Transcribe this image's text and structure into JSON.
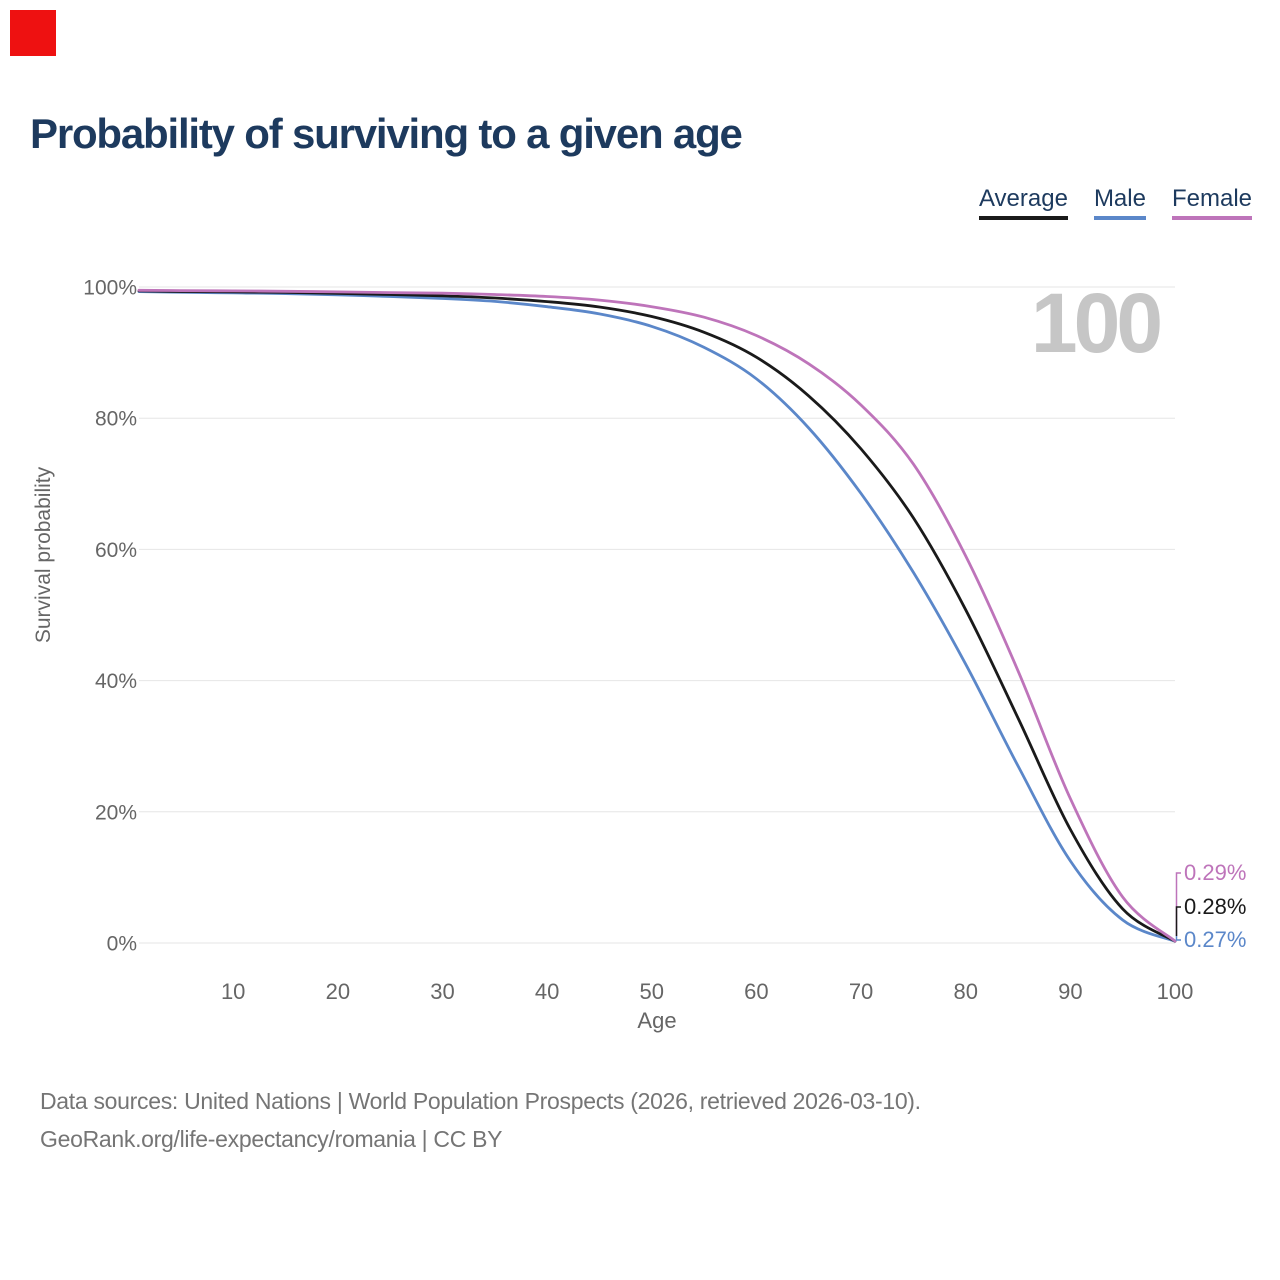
{
  "red_square": {
    "color": "#ee1111"
  },
  "title": "Probability of surviving to a given age",
  "legend": {
    "items": [
      {
        "label": "Average",
        "color": "#1a1a1a"
      },
      {
        "label": "Male",
        "color": "#5b87c9"
      },
      {
        "label": "Female",
        "color": "#be74ba"
      }
    ]
  },
  "chart_data": {
    "type": "line",
    "title": "Probability of surviving to a given age",
    "xlabel": "Age",
    "ylabel": "Survival probability",
    "watermark": "100",
    "x_ticks": [
      10,
      20,
      30,
      40,
      50,
      60,
      70,
      80,
      90,
      100
    ],
    "y_tick_labels": [
      "0%",
      "20%",
      "40%",
      "60%",
      "80%",
      "100%"
    ],
    "y_tick_values": [
      0,
      20,
      40,
      60,
      80,
      100
    ],
    "xlim": [
      1,
      100
    ],
    "ylim": [
      0,
      100
    ],
    "grid": "horizontal",
    "legend_position": "top-right",
    "ages": [
      1,
      5,
      10,
      15,
      20,
      25,
      30,
      35,
      40,
      45,
      50,
      55,
      60,
      65,
      70,
      75,
      80,
      85,
      90,
      95,
      100
    ],
    "series": [
      {
        "name": "Male",
        "color": "#5b87c9",
        "end_label": "0.27%",
        "values": [
          99.3,
          99.2,
          99.1,
          99.0,
          98.8,
          98.55,
          98.25,
          97.8,
          97.0,
          95.9,
          94.0,
          90.8,
          86.0,
          78.5,
          68.5,
          56.5,
          42.5,
          27.0,
          12.5,
          3.5,
          0.27
        ]
      },
      {
        "name": "Average",
        "color": "#1a1a1a",
        "end_label": "0.28%",
        "values": [
          99.4,
          99.32,
          99.25,
          99.17,
          99.02,
          98.85,
          98.65,
          98.32,
          97.77,
          96.95,
          95.5,
          93.1,
          89.3,
          83.4,
          75.3,
          64.8,
          50.8,
          34.3,
          17.3,
          5.2,
          0.28
        ]
      },
      {
        "name": "Female",
        "color": "#be74ba",
        "end_label": "0.29%",
        "values": [
          99.5,
          99.45,
          99.4,
          99.35,
          99.25,
          99.15,
          99.05,
          98.85,
          98.55,
          98.0,
          97.0,
          95.4,
          92.6,
          88.3,
          82.0,
          73.0,
          59.0,
          41.5,
          22.0,
          7.0,
          0.29
        ]
      }
    ]
  },
  "footer": {
    "line1": "Data sources: United Nations | World Population Prospects (2026, retrieved 2026-03-10).",
    "line2": "GeoRank.org/life-expectancy/romania | CC BY"
  }
}
